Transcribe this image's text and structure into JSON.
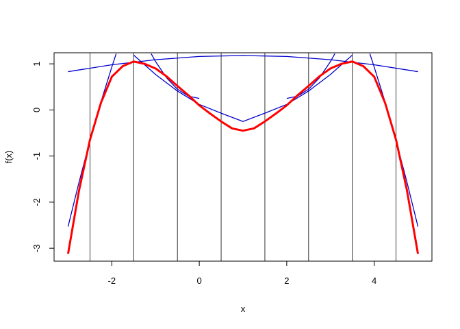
{
  "chart_data": {
    "type": "line",
    "xlabel": "x",
    "ylabel": "f(x)",
    "xlim": [
      -3.32,
      5.32
    ],
    "ylim": [
      -3.28,
      1.24
    ],
    "xticks": [
      -2,
      0,
      2,
      4
    ],
    "yticks": [
      -3,
      -2,
      -1,
      0,
      1
    ],
    "vlines": [
      -2.5,
      -1.5,
      -0.5,
      0.5,
      1.5,
      2.5,
      3.5,
      4.5
    ],
    "series": [
      {
        "color": "#ff0000",
        "width": 3,
        "x": [
          -3,
          -2.75,
          -2.5,
          -2.25,
          -2,
          -1.75,
          -1.5,
          -1.25,
          -1,
          -0.75,
          -0.5,
          -0.25,
          0,
          0.25,
          0.5,
          0.75,
          1,
          1.25,
          1.5,
          1.75,
          2,
          2.25,
          2.5,
          2.75,
          3,
          3.25,
          3.5,
          3.75,
          4,
          4.25,
          4.5,
          4.75,
          5
        ],
        "values": [
          -3.12,
          -1.75,
          -0.65,
          0.15,
          0.72,
          0.95,
          1.05,
          1.0,
          0.9,
          0.73,
          0.52,
          0.32,
          0.1,
          -0.08,
          -0.25,
          -0.4,
          -0.45,
          -0.4,
          -0.25,
          -0.08,
          0.1,
          0.32,
          0.52,
          0.73,
          0.9,
          1.0,
          1.05,
          0.95,
          0.72,
          0.15,
          -0.65,
          -1.75,
          -3.12
        ]
      },
      {
        "color": "#0000cc",
        "width": 1.3,
        "x": [
          -3,
          -2,
          -1,
          0,
          1,
          2,
          3,
          4,
          5
        ],
        "values": [
          0.83,
          0.98,
          1.09,
          1.16,
          1.18,
          1.16,
          1.09,
          0.98,
          0.83
        ]
      },
      {
        "color": "#0000cc",
        "width": 1.3,
        "x": [
          -1.5,
          -1,
          -0.5,
          0,
          0.5,
          1,
          1.5,
          2,
          2.5,
          3,
          3.5
        ],
        "values": [
          1.19,
          0.77,
          0.41,
          0.12,
          -0.07,
          -0.25,
          -0.07,
          0.12,
          0.41,
          0.77,
          1.19
        ]
      },
      {
        "color": "#0000cc",
        "width": 1.3,
        "x": [
          -3,
          -2.75,
          -2.5,
          -2.25,
          -2,
          -1.9
        ],
        "values": [
          -2.53,
          -1.57,
          -0.67,
          0.17,
          0.93,
          1.22
        ]
      },
      {
        "color": "#0000cc",
        "width": 1.3,
        "x": [
          3.9,
          4,
          4.25,
          4.5,
          4.75,
          5
        ],
        "values": [
          1.22,
          0.93,
          0.17,
          -0.67,
          -1.57,
          -2.53
        ]
      },
      {
        "color": "#0000cc",
        "width": 1.3,
        "x": [
          -1.1,
          -1,
          -0.75,
          -0.5,
          -0.25,
          0
        ],
        "values": [
          1.22,
          1.05,
          0.7,
          0.45,
          0.3,
          0.25
        ]
      },
      {
        "color": "#0000cc",
        "width": 1.3,
        "x": [
          2,
          2.25,
          2.5,
          2.75,
          3,
          3.1
        ],
        "values": [
          0.25,
          0.3,
          0.45,
          0.7,
          1.05,
          1.22
        ]
      }
    ]
  }
}
